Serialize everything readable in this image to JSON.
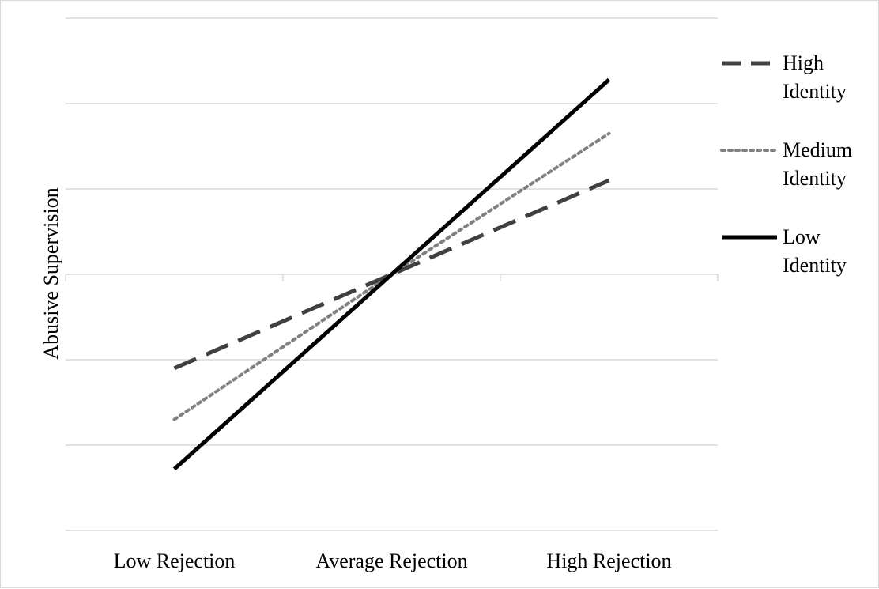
{
  "chart_data": {
    "type": "line",
    "title": "",
    "xlabel": "",
    "ylabel": "Abusive Supervision",
    "categories": [
      "Low Rejection",
      "Average Rejection",
      "High Rejection"
    ],
    "ylim": [
      0,
      6
    ],
    "grid": true,
    "y_ticks_labeled": false,
    "legend": "right",
    "series": [
      {
        "name_lines": [
          "High",
          "Identity"
        ],
        "style": "dashed",
        "color": "#404040",
        "values": [
          1.9,
          3.0,
          4.1
        ]
      },
      {
        "name_lines": [
          "Medium",
          "Identity"
        ],
        "style": "dotted",
        "color": "#808080",
        "values": [
          1.3,
          3.0,
          4.65
        ]
      },
      {
        "name_lines": [
          "Low",
          "Identity"
        ],
        "style": "solid",
        "color": "#000000",
        "values": [
          0.72,
          3.0,
          5.28
        ]
      }
    ]
  }
}
